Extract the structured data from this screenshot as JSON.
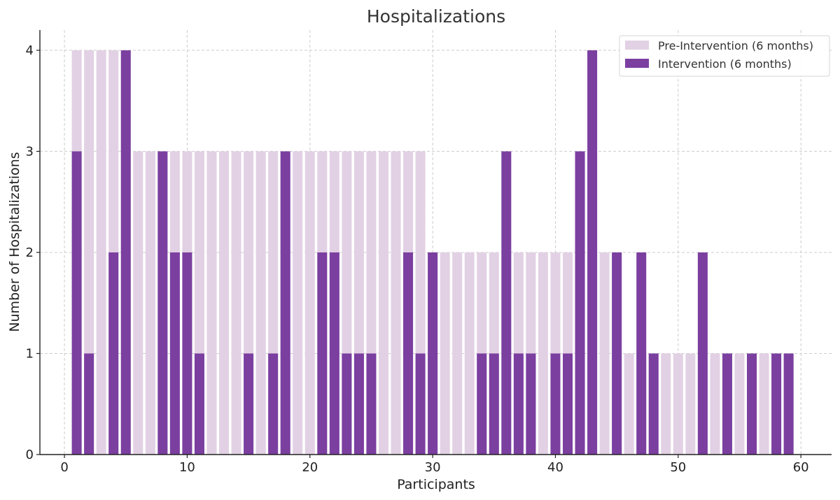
{
  "chart_data": {
    "type": "bar",
    "title": "Hospitalizations",
    "xlabel": "Participants",
    "ylabel": "Number of Hospitalizations",
    "xlim": [
      -2,
      62.5
    ],
    "ylim": [
      0,
      4.2
    ],
    "xticks": [
      0,
      10,
      20,
      30,
      40,
      50,
      60
    ],
    "yticks": [
      0,
      1,
      2,
      3,
      4
    ],
    "grid": true,
    "legend_position": "top-right",
    "x": [
      1,
      2,
      3,
      4,
      5,
      6,
      7,
      8,
      9,
      10,
      11,
      12,
      13,
      14,
      15,
      16,
      17,
      18,
      19,
      20,
      21,
      22,
      23,
      24,
      25,
      26,
      27,
      28,
      29,
      30,
      31,
      32,
      33,
      34,
      35,
      36,
      37,
      38,
      39,
      40,
      41,
      42,
      43,
      44,
      45,
      46,
      47,
      48,
      49,
      50,
      51,
      52,
      53,
      54,
      55,
      56,
      57,
      58,
      59
    ],
    "series": [
      {
        "name": "Pre-Intervention (6 months)",
        "color": "#e2d1e4",
        "values": [
          4,
          4,
          4,
          4,
          4,
          3,
          3,
          3,
          3,
          3,
          3,
          3,
          3,
          3,
          3,
          3,
          3,
          3,
          3,
          3,
          3,
          3,
          3,
          3,
          3,
          3,
          3,
          3,
          3,
          2,
          2,
          2,
          2,
          2,
          2,
          2,
          2,
          2,
          2,
          2,
          2,
          2,
          2,
          2,
          2,
          1,
          1,
          1,
          1,
          1,
          1,
          1,
          1,
          1,
          1,
          1,
          1,
          1,
          1
        ]
      },
      {
        "name": "Intervention (6 months)",
        "color": "#7b3fa0",
        "values": [
          3,
          1,
          0,
          2,
          4,
          0,
          0,
          3,
          2,
          2,
          1,
          0,
          0,
          0,
          1,
          0,
          1,
          3,
          0,
          0,
          2,
          2,
          1,
          1,
          1,
          0,
          0,
          2,
          1,
          2,
          0,
          0,
          0,
          1,
          1,
          3,
          1,
          1,
          0,
          1,
          1,
          3,
          4,
          0,
          2,
          0,
          2,
          1,
          0,
          0,
          0,
          2,
          0,
          1,
          0,
          1,
          0,
          1,
          1
        ]
      }
    ]
  }
}
